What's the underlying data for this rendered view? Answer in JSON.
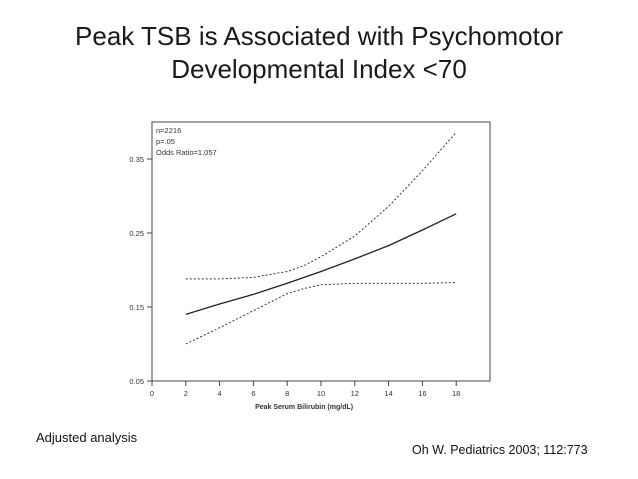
{
  "slide": {
    "title_line1": "Peak TSB is Associated with Psychomotor",
    "title_line2": "Developmental Index <70",
    "adjusted_note": "Adjusted analysis",
    "citation": "Oh W. Pediatrics 2003; 112:773"
  },
  "chart_data": {
    "type": "line",
    "xlabel": "Peak Serum Bilirubin (mg/dL)",
    "ylabel": "",
    "xlim": [
      0,
      20
    ],
    "ylim": [
      0.05,
      0.4
    ],
    "x_ticks": [
      0,
      2,
      4,
      6,
      8,
      10,
      12,
      14,
      16,
      18
    ],
    "y_ticks": [
      0.05,
      0.15,
      0.25,
      0.35
    ],
    "y_tick_labels": [
      "0.05",
      "0.15",
      "0.25",
      "0.35"
    ],
    "grid": false,
    "annotations": [
      "n=2216",
      "p=.05",
      "Odds Ratio=1.057"
    ],
    "series": [
      {
        "style": "solid",
        "x": [
          2,
          4,
          6,
          8,
          10,
          12,
          14,
          16,
          18
        ],
        "y": [
          0.14,
          0.154,
          0.167,
          0.182,
          0.198,
          0.215,
          0.233,
          0.254,
          0.276
        ]
      },
      {
        "style": "dashed",
        "x": [
          2,
          4,
          6,
          8,
          9,
          10,
          12,
          14,
          16,
          18
        ],
        "y": [
          0.188,
          0.188,
          0.19,
          0.198,
          0.206,
          0.218,
          0.246,
          0.286,
          0.334,
          0.386
        ]
      },
      {
        "style": "dashed",
        "x": [
          2,
          4,
          6,
          8,
          9,
          10,
          12,
          14,
          16,
          18
        ],
        "y": [
          0.1,
          0.122,
          0.145,
          0.168,
          0.175,
          0.18,
          0.182,
          0.182,
          0.182,
          0.183
        ]
      }
    ]
  }
}
